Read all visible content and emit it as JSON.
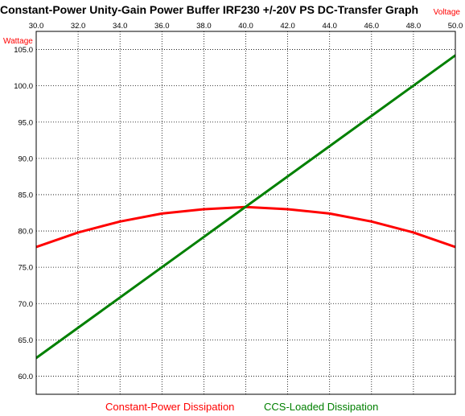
{
  "chart_data": {
    "type": "line",
    "title": "Constant-Power Unity-Gain Power Buffer IRF230 +/-20V PS DC-Transfer Graph",
    "xlabel": "Voltage",
    "ylabel": "Wattage",
    "xlim": [
      30.0,
      50.0
    ],
    "ylim": [
      57.5,
      107.5
    ],
    "x_ticks": [
      "30.0",
      "32.0",
      "34.0",
      "36.0",
      "38.0",
      "40.0",
      "42.0",
      "44.0",
      "46.0",
      "48.0",
      "50.0"
    ],
    "y_ticks": [
      "60.0",
      "65.0",
      "70.0",
      "75.0",
      "80.0",
      "85.0",
      "90.0",
      "95.0",
      "100.0",
      "105.0"
    ],
    "grid": true,
    "legend_position": "bottom",
    "series": [
      {
        "name": "Constant-Power Dissipation",
        "color": "#ff0000",
        "x": [
          30,
          32,
          34,
          36,
          38,
          40,
          42,
          44,
          46,
          48,
          50
        ],
        "y": [
          77.8,
          79.8,
          81.3,
          82.4,
          83.0,
          83.3,
          83.0,
          82.4,
          81.3,
          79.8,
          77.8
        ]
      },
      {
        "name": "CCS-Loaded Dissipation",
        "color": "#008000",
        "x": [
          30,
          50
        ],
        "y": [
          62.5,
          104.2
        ]
      }
    ]
  }
}
